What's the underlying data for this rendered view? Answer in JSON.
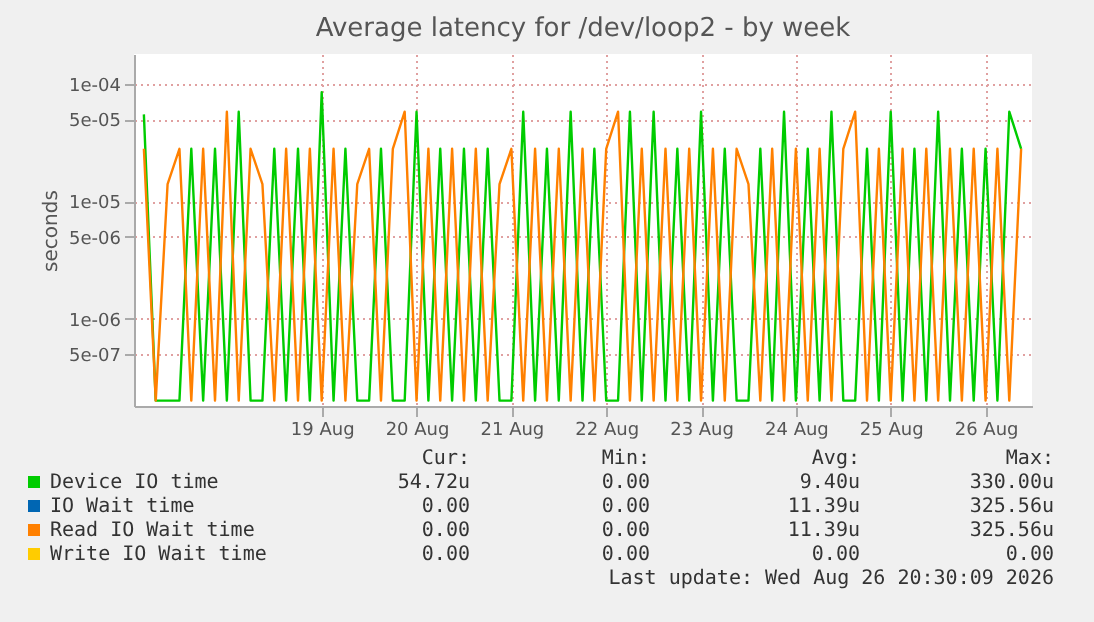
{
  "chart_data": {
    "type": "line",
    "title": "Average latency for /dev/loop2 - by week",
    "ylabel": "seconds",
    "log": "y",
    "grid": true,
    "legend": "bottom",
    "ylim": [
      1.8e-07,
      0.00018
    ],
    "yticks": [
      {
        "value": 0.0001,
        "label": "1e-04"
      },
      {
        "value": 5e-05,
        "label": "5e-05"
      },
      {
        "value": 1e-05,
        "label": "1e-05"
      },
      {
        "value": 5e-06,
        "label": "5e-06"
      },
      {
        "value": 1e-06,
        "label": "1e-06"
      },
      {
        "value": 5e-07,
        "label": "5e-07"
      }
    ],
    "xlim": [
      "2026-08-17T12:30",
      "2026-08-26T23:45"
    ],
    "xticks": [
      {
        "value": "2026-08-19T12:00",
        "label": "19 Aug"
      },
      {
        "value": "2026-08-20T12:00",
        "label": "20 Aug"
      },
      {
        "value": "2026-08-21T12:00",
        "label": "21 Aug"
      },
      {
        "value": "2026-08-22T12:00",
        "label": "22 Aug"
      },
      {
        "value": "2026-08-23T12:00",
        "label": "23 Aug"
      },
      {
        "value": "2026-08-24T12:00",
        "label": "24 Aug"
      },
      {
        "value": "2026-08-25T12:00",
        "label": "25 Aug"
      },
      {
        "value": "2026-08-26T12:00",
        "label": "26 Aug"
      }
    ],
    "x": [
      "2026-08-17T15:00",
      "2026-08-17T18:00",
      "2026-08-17T21:00",
      "2026-08-18T00:00",
      "2026-08-18T03:00",
      "2026-08-18T06:00",
      "2026-08-18T09:00",
      "2026-08-18T12:00",
      "2026-08-18T15:00",
      "2026-08-18T18:00",
      "2026-08-18T21:00",
      "2026-08-19T00:00",
      "2026-08-19T03:00",
      "2026-08-19T06:00",
      "2026-08-19T09:00",
      "2026-08-19T12:00",
      "2026-08-19T15:00",
      "2026-08-19T18:00",
      "2026-08-19T21:00",
      "2026-08-20T00:00",
      "2026-08-20T03:00",
      "2026-08-20T06:00",
      "2026-08-20T09:00",
      "2026-08-20T12:00",
      "2026-08-20T15:00",
      "2026-08-20T18:00",
      "2026-08-20T21:00",
      "2026-08-21T00:00",
      "2026-08-21T03:00",
      "2026-08-21T06:00",
      "2026-08-21T09:00",
      "2026-08-21T12:00",
      "2026-08-21T15:00",
      "2026-08-21T18:00",
      "2026-08-21T21:00",
      "2026-08-22T00:00",
      "2026-08-22T03:00",
      "2026-08-22T06:00",
      "2026-08-22T09:00",
      "2026-08-22T12:00",
      "2026-08-22T15:00",
      "2026-08-22T18:00",
      "2026-08-22T21:00",
      "2026-08-23T00:00",
      "2026-08-23T03:00",
      "2026-08-23T06:00",
      "2026-08-23T09:00",
      "2026-08-23T12:00",
      "2026-08-23T15:00",
      "2026-08-23T18:00",
      "2026-08-23T21:00",
      "2026-08-24T00:00",
      "2026-08-24T03:00",
      "2026-08-24T06:00",
      "2026-08-24T09:00",
      "2026-08-24T12:00",
      "2026-08-24T15:00",
      "2026-08-24T18:00",
      "2026-08-24T21:00",
      "2026-08-25T00:00",
      "2026-08-25T03:00",
      "2026-08-25T06:00",
      "2026-08-25T09:00",
      "2026-08-25T12:00",
      "2026-08-25T15:00",
      "2026-08-25T18:00",
      "2026-08-25T21:00",
      "2026-08-26T00:00",
      "2026-08-26T03:00",
      "2026-08-26T06:00",
      "2026-08-26T09:00",
      "2026-08-26T12:00",
      "2026-08-26T15:00",
      "2026-08-26T18:00",
      "2026-08-26T21:00"
    ],
    "series": [
      {
        "name": "Device IO time",
        "color": "#00cc00",
        "values": [
          5.5e-05,
          2e-07,
          2e-07,
          2e-07,
          2.8e-05,
          2e-07,
          2.8e-05,
          2e-07,
          5.8e-05,
          2e-07,
          2e-07,
          2.8e-05,
          2e-07,
          2.8e-05,
          2e-07,
          8.5e-05,
          2e-07,
          2.8e-05,
          2e-07,
          2e-07,
          2.8e-05,
          2e-07,
          2e-07,
          5.8e-05,
          2e-07,
          2.8e-05,
          2e-07,
          2.8e-05,
          2e-07,
          2.8e-05,
          2e-07,
          2e-07,
          5.8e-05,
          2e-07,
          2.8e-05,
          2e-07,
          5.8e-05,
          2e-07,
          2.8e-05,
          2e-07,
          2e-07,
          5.8e-05,
          2e-07,
          5.8e-05,
          2e-07,
          2.8e-05,
          2e-07,
          5.8e-05,
          2e-07,
          2.8e-05,
          2e-07,
          2e-07,
          2.8e-05,
          2e-07,
          5.8e-05,
          2e-07,
          2.8e-05,
          2e-07,
          5.8e-05,
          2e-07,
          2e-07,
          2.8e-05,
          2e-07,
          5.8e-05,
          2e-07,
          2.8e-05,
          2e-07,
          5.8e-05,
          2e-07,
          2.8e-05,
          2e-07,
          2.8e-05,
          2e-07,
          5.8e-05,
          2.8e-05
        ]
      },
      {
        "name": "IO Wait time",
        "color": "#0066b3",
        "values": [
          null,
          null,
          null,
          null,
          null,
          null,
          null,
          null,
          null,
          null,
          null,
          null,
          null,
          null,
          null,
          null,
          null,
          null,
          null,
          null,
          null,
          null,
          null,
          null,
          null,
          null,
          null,
          null,
          null,
          null,
          null,
          null,
          null,
          null,
          null,
          null,
          null,
          null,
          null,
          null,
          null,
          null,
          null,
          null,
          null,
          null,
          null,
          null,
          null,
          null,
          null,
          null,
          null,
          null,
          null,
          null,
          null,
          null,
          null,
          null,
          null,
          null,
          null,
          null,
          null,
          null,
          null,
          null,
          null,
          null,
          null,
          null,
          null,
          null,
          null
        ]
      },
      {
        "name": "Read IO Wait time",
        "color": "#ff8000",
        "values": [
          2.8e-05,
          2e-07,
          1.4e-05,
          2.8e-05,
          2e-07,
          2.8e-05,
          2e-07,
          5.8e-05,
          2e-07,
          2.8e-05,
          1.4e-05,
          2e-07,
          2.8e-05,
          2e-07,
          2.8e-05,
          2e-07,
          2.8e-05,
          2e-07,
          1.4e-05,
          2.8e-05,
          2e-07,
          2.8e-05,
          5.8e-05,
          2e-07,
          2.8e-05,
          2e-07,
          2.8e-05,
          2e-07,
          2.8e-05,
          2e-07,
          1.4e-05,
          2.8e-05,
          2e-07,
          2.8e-05,
          2e-07,
          2.8e-05,
          2e-07,
          2.8e-05,
          2e-07,
          2.8e-05,
          5.8e-05,
          2e-07,
          2.8e-05,
          2e-07,
          2.8e-05,
          2e-07,
          2.8e-05,
          2e-07,
          2.8e-05,
          2e-07,
          2.8e-05,
          1.4e-05,
          2e-07,
          2.8e-05,
          2e-07,
          2.8e-05,
          2e-07,
          2.8e-05,
          2e-07,
          2.8e-05,
          5.8e-05,
          2e-07,
          2.8e-05,
          2e-07,
          2.8e-05,
          2e-07,
          2.8e-05,
          2e-07,
          2.8e-05,
          2e-07,
          2.8e-05,
          2e-07,
          2.8e-05,
          2e-07,
          2.8e-05
        ]
      },
      {
        "name": "Write IO Wait time",
        "color": "#ffcc00",
        "values": [
          null,
          null,
          null,
          null,
          null,
          null,
          null,
          null,
          null,
          null,
          null,
          null,
          null,
          null,
          null,
          null,
          null,
          null,
          null,
          null,
          null,
          null,
          null,
          null,
          null,
          null,
          null,
          null,
          null,
          null,
          null,
          null,
          null,
          null,
          null,
          null,
          null,
          null,
          null,
          null,
          null,
          null,
          null,
          null,
          null,
          null,
          null,
          null,
          null,
          null,
          null,
          null,
          null,
          null,
          null,
          null,
          null,
          null,
          null,
          null,
          null,
          null,
          null,
          null,
          null,
          null,
          null,
          null,
          null,
          null,
          null,
          null,
          null,
          null,
          null
        ]
      }
    ],
    "annotations": [
      "Cur:",
      "Min:",
      "Avg:",
      "Max:",
      "54.72u",
      "0.00",
      "9.40u",
      "330.00u",
      "0.00",
      "0.00",
      "11.39u",
      "325.56u",
      "0.00",
      "0.00",
      "11.39u",
      "325.56u",
      "0.00",
      "0.00",
      "0.00",
      "0.00",
      "Last update: Wed Aug 26 20:30:09 2026"
    ]
  }
}
